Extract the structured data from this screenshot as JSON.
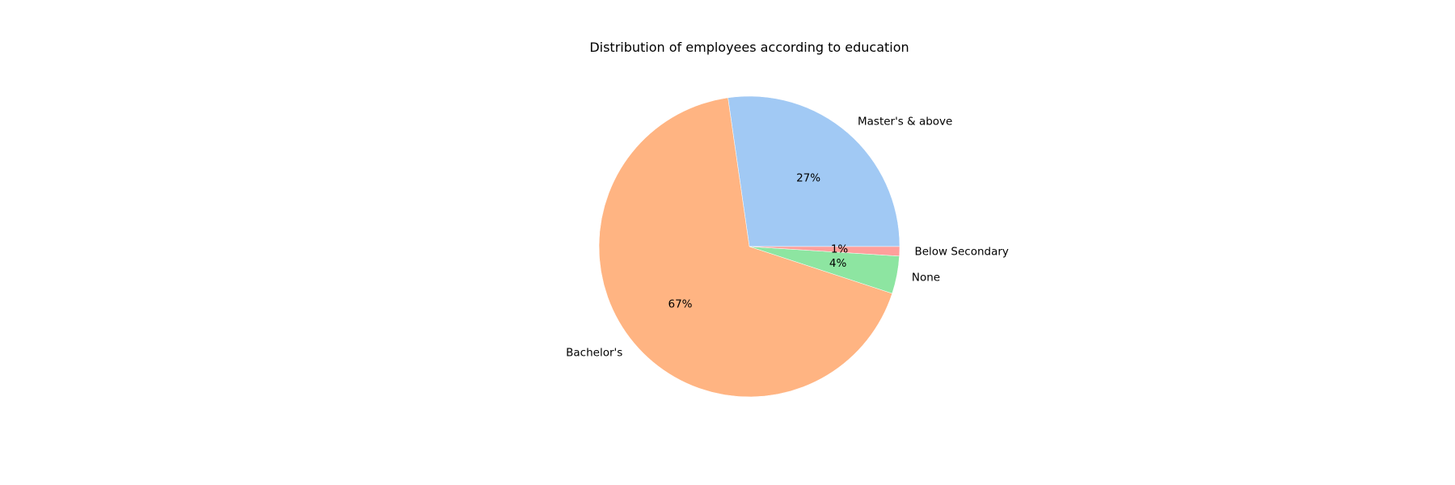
{
  "chart_data": {
    "type": "pie",
    "title": "Distribution of employees according to education",
    "slices": [
      {
        "label": "Master's & above",
        "value": 27,
        "pct_label": "27%",
        "color": "#a1c9f4"
      },
      {
        "label": "Bachelor's",
        "value": 67,
        "pct_label": "67%",
        "color": "#ffb482"
      },
      {
        "label": "None",
        "value": 4,
        "pct_label": "4%",
        "color": "#8de5a1"
      },
      {
        "label": "Below Secondary",
        "value": 1,
        "pct_label": "1%",
        "color": "#ff9f9b"
      }
    ]
  }
}
